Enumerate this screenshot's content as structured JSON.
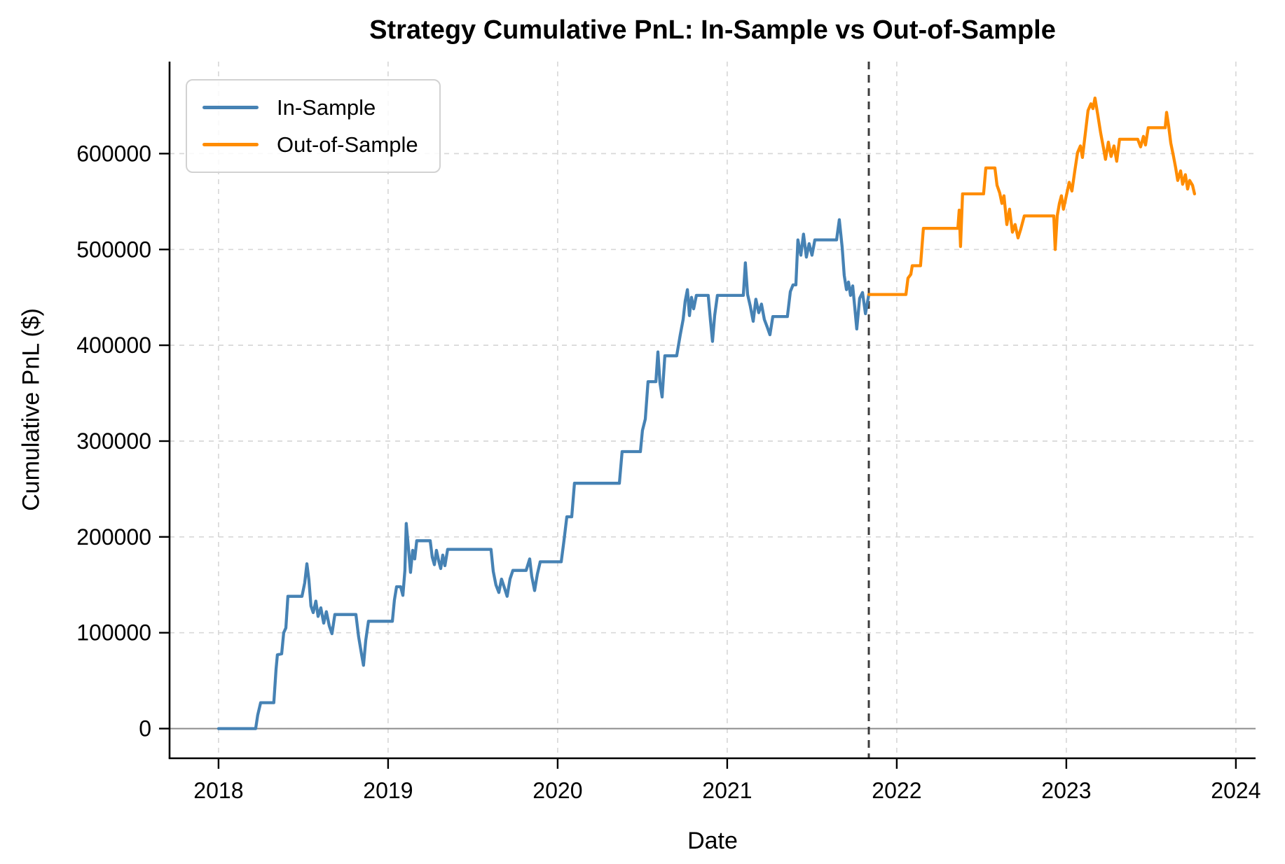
{
  "chart_data": {
    "type": "line",
    "title": "Strategy Cumulative PnL: In-Sample vs Out-of-Sample",
    "xlabel": "Date",
    "ylabel": "Cumulative PnL ($)",
    "xlim": [
      2017.711,
      2024.116
    ],
    "ylim": [
      -31000,
      696000
    ],
    "x_ticks": [
      {
        "v": 2018,
        "label": "2018"
      },
      {
        "v": 2019,
        "label": "2019"
      },
      {
        "v": 2020,
        "label": "2020"
      },
      {
        "v": 2021,
        "label": "2021"
      },
      {
        "v": 2022,
        "label": "2022"
      },
      {
        "v": 2023,
        "label": "2023"
      },
      {
        "v": 2024,
        "label": "2024"
      }
    ],
    "y_ticks": [
      {
        "v": 0,
        "label": "0"
      },
      {
        "v": 100000,
        "label": "100000"
      },
      {
        "v": 200000,
        "label": "200000"
      },
      {
        "v": 300000,
        "label": "300000"
      },
      {
        "v": 400000,
        "label": "400000"
      },
      {
        "v": 500000,
        "label": "500000"
      },
      {
        "v": 600000,
        "label": "600000"
      }
    ],
    "grid": {
      "visible": true,
      "style": "dashed",
      "color": "#d8d8d8"
    },
    "zero_line": {
      "y": 0,
      "color": "#8c8c8c",
      "style": "solid"
    },
    "split_line": {
      "x": 2021.835,
      "color": "#3c3c3c",
      "style": "dashed"
    },
    "legend": {
      "position": "upper-left",
      "entries": [
        {
          "label": "In-Sample",
          "color": "#4682B4"
        },
        {
          "label": "Out-of-Sample",
          "color": "#FF8C00"
        }
      ]
    },
    "line_width": 4.3,
    "series": [
      {
        "name": "In-Sample",
        "color": "#4682B4",
        "points": [
          [
            2018.0,
            0
          ],
          [
            2018.219,
            0
          ],
          [
            2018.231,
            14000
          ],
          [
            2018.248,
            27000
          ],
          [
            2018.326,
            27000
          ],
          [
            2018.339,
            62000
          ],
          [
            2018.347,
            77000
          ],
          [
            2018.372,
            78000
          ],
          [
            2018.384,
            100000
          ],
          [
            2018.397,
            105000
          ],
          [
            2018.409,
            138000
          ],
          [
            2018.492,
            138000
          ],
          [
            2018.508,
            152000
          ],
          [
            2018.521,
            172000
          ],
          [
            2018.533,
            155000
          ],
          [
            2018.545,
            128000
          ],
          [
            2018.558,
            121000
          ],
          [
            2018.574,
            133000
          ],
          [
            2018.587,
            117000
          ],
          [
            2018.603,
            126000
          ],
          [
            2018.62,
            110000
          ],
          [
            2018.636,
            122000
          ],
          [
            2018.653,
            107000
          ],
          [
            2018.669,
            99000
          ],
          [
            2018.686,
            119000
          ],
          [
            2018.81,
            119000
          ],
          [
            2018.826,
            96000
          ],
          [
            2018.843,
            78000
          ],
          [
            2018.855,
            66000
          ],
          [
            2018.868,
            92000
          ],
          [
            2018.884,
            112000
          ],
          [
            2019.025,
            112000
          ],
          [
            2019.037,
            134000
          ],
          [
            2019.05,
            148000
          ],
          [
            2019.074,
            148000
          ],
          [
            2019.087,
            139000
          ],
          [
            2019.099,
            165000
          ],
          [
            2019.107,
            214000
          ],
          [
            2019.12,
            188000
          ],
          [
            2019.132,
            163000
          ],
          [
            2019.145,
            186000
          ],
          [
            2019.157,
            177000
          ],
          [
            2019.169,
            196000
          ],
          [
            2019.248,
            196000
          ],
          [
            2019.26,
            179000
          ],
          [
            2019.273,
            171000
          ],
          [
            2019.285,
            186000
          ],
          [
            2019.298,
            175000
          ],
          [
            2019.31,
            167000
          ],
          [
            2019.322,
            181000
          ],
          [
            2019.335,
            170000
          ],
          [
            2019.351,
            187000
          ],
          [
            2019.607,
            187000
          ],
          [
            2019.62,
            164000
          ],
          [
            2019.636,
            150000
          ],
          [
            2019.653,
            142000
          ],
          [
            2019.669,
            156000
          ],
          [
            2019.686,
            147000
          ],
          [
            2019.702,
            138000
          ],
          [
            2019.719,
            156000
          ],
          [
            2019.736,
            165000
          ],
          [
            2019.814,
            165000
          ],
          [
            2019.835,
            177000
          ],
          [
            2019.847,
            159000
          ],
          [
            2019.864,
            144000
          ],
          [
            2019.88,
            161000
          ],
          [
            2019.897,
            174000
          ],
          [
            2020.021,
            174000
          ],
          [
            2020.037,
            196000
          ],
          [
            2020.054,
            221000
          ],
          [
            2020.083,
            221000
          ],
          [
            2020.099,
            256000
          ],
          [
            2020.364,
            256000
          ],
          [
            2020.38,
            289000
          ],
          [
            2020.488,
            289000
          ],
          [
            2020.5,
            311000
          ],
          [
            2020.517,
            323000
          ],
          [
            2020.533,
            362000
          ],
          [
            2020.579,
            362000
          ],
          [
            2020.591,
            393000
          ],
          [
            2020.603,
            361000
          ],
          [
            2020.616,
            346000
          ],
          [
            2020.632,
            389000
          ],
          [
            2020.702,
            389000
          ],
          [
            2020.723,
            411000
          ],
          [
            2020.74,
            427000
          ],
          [
            2020.752,
            446000
          ],
          [
            2020.765,
            458000
          ],
          [
            2020.777,
            431000
          ],
          [
            2020.789,
            450000
          ],
          [
            2020.802,
            438000
          ],
          [
            2020.818,
            452000
          ],
          [
            2020.888,
            452000
          ],
          [
            2020.901,
            426000
          ],
          [
            2020.913,
            404000
          ],
          [
            2020.926,
            431000
          ],
          [
            2020.942,
            452000
          ],
          [
            2021.095,
            452000
          ],
          [
            2021.107,
            486000
          ],
          [
            2021.12,
            453000
          ],
          [
            2021.136,
            441000
          ],
          [
            2021.153,
            425000
          ],
          [
            2021.169,
            448000
          ],
          [
            2021.186,
            434000
          ],
          [
            2021.202,
            443000
          ],
          [
            2021.219,
            427000
          ],
          [
            2021.236,
            419000
          ],
          [
            2021.252,
            411000
          ],
          [
            2021.269,
            430000
          ],
          [
            2021.355,
            430000
          ],
          [
            2021.372,
            456000
          ],
          [
            2021.388,
            463000
          ],
          [
            2021.405,
            463000
          ],
          [
            2021.417,
            510000
          ],
          [
            2021.434,
            494000
          ],
          [
            2021.45,
            516000
          ],
          [
            2021.467,
            492000
          ],
          [
            2021.483,
            506000
          ],
          [
            2021.5,
            494000
          ],
          [
            2021.517,
            510000
          ],
          [
            2021.645,
            510000
          ],
          [
            2021.661,
            531000
          ],
          [
            2021.678,
            502000
          ],
          [
            2021.69,
            473000
          ],
          [
            2021.703,
            458000
          ],
          [
            2021.715,
            466000
          ],
          [
            2021.727,
            452000
          ],
          [
            2021.74,
            462000
          ],
          [
            2021.752,
            440000
          ],
          [
            2021.764,
            417000
          ],
          [
            2021.781,
            449000
          ],
          [
            2021.798,
            455000
          ],
          [
            2021.815,
            433000
          ],
          [
            2021.835,
            453000
          ]
        ]
      },
      {
        "name": "Out-of-Sample",
        "color": "#FF8C00",
        "points": [
          [
            2021.835,
            453000
          ],
          [
            2022.054,
            453000
          ],
          [
            2022.066,
            470000
          ],
          [
            2022.083,
            474000
          ],
          [
            2022.091,
            483000
          ],
          [
            2022.14,
            483000
          ],
          [
            2022.157,
            522000
          ],
          [
            2022.36,
            522000
          ],
          [
            2022.368,
            541000
          ],
          [
            2022.376,
            503000
          ],
          [
            2022.388,
            558000
          ],
          [
            2022.512,
            558000
          ],
          [
            2022.525,
            585000
          ],
          [
            2022.579,
            585000
          ],
          [
            2022.591,
            567000
          ],
          [
            2022.607,
            559000
          ],
          [
            2022.62,
            548000
          ],
          [
            2022.632,
            556000
          ],
          [
            2022.649,
            526000
          ],
          [
            2022.665,
            542000
          ],
          [
            2022.682,
            518000
          ],
          [
            2022.698,
            526000
          ],
          [
            2022.715,
            512000
          ],
          [
            2022.731,
            521000
          ],
          [
            2022.752,
            535000
          ],
          [
            2022.926,
            535000
          ],
          [
            2022.934,
            500000
          ],
          [
            2022.946,
            535000
          ],
          [
            2022.959,
            548000
          ],
          [
            2022.971,
            556000
          ],
          [
            2022.983,
            542000
          ],
          [
            2023.0,
            556000
          ],
          [
            2023.017,
            570000
          ],
          [
            2023.033,
            561000
          ],
          [
            2023.05,
            582000
          ],
          [
            2023.066,
            601000
          ],
          [
            2023.083,
            608000
          ],
          [
            2023.095,
            596000
          ],
          [
            2023.112,
            621000
          ],
          [
            2023.128,
            645000
          ],
          [
            2023.145,
            652000
          ],
          [
            2023.157,
            647000
          ],
          [
            2023.169,
            658000
          ],
          [
            2023.186,
            640000
          ],
          [
            2023.202,
            622000
          ],
          [
            2023.219,
            606000
          ],
          [
            2023.231,
            594000
          ],
          [
            2023.248,
            612000
          ],
          [
            2023.264,
            597000
          ],
          [
            2023.281,
            608000
          ],
          [
            2023.297,
            592000
          ],
          [
            2023.314,
            615000
          ],
          [
            2023.421,
            615000
          ],
          [
            2023.438,
            607000
          ],
          [
            2023.455,
            618000
          ],
          [
            2023.467,
            609000
          ],
          [
            2023.483,
            627000
          ],
          [
            2023.583,
            627000
          ],
          [
            2023.591,
            643000
          ],
          [
            2023.603,
            629000
          ],
          [
            2023.616,
            611000
          ],
          [
            2023.632,
            597000
          ],
          [
            2023.645,
            585000
          ],
          [
            2023.657,
            572000
          ],
          [
            2023.674,
            582000
          ],
          [
            2023.686,
            568000
          ],
          [
            2023.702,
            578000
          ],
          [
            2023.715,
            563000
          ],
          [
            2023.727,
            572000
          ],
          [
            2023.744,
            567000
          ],
          [
            2023.756,
            558000
          ]
        ]
      }
    ]
  }
}
